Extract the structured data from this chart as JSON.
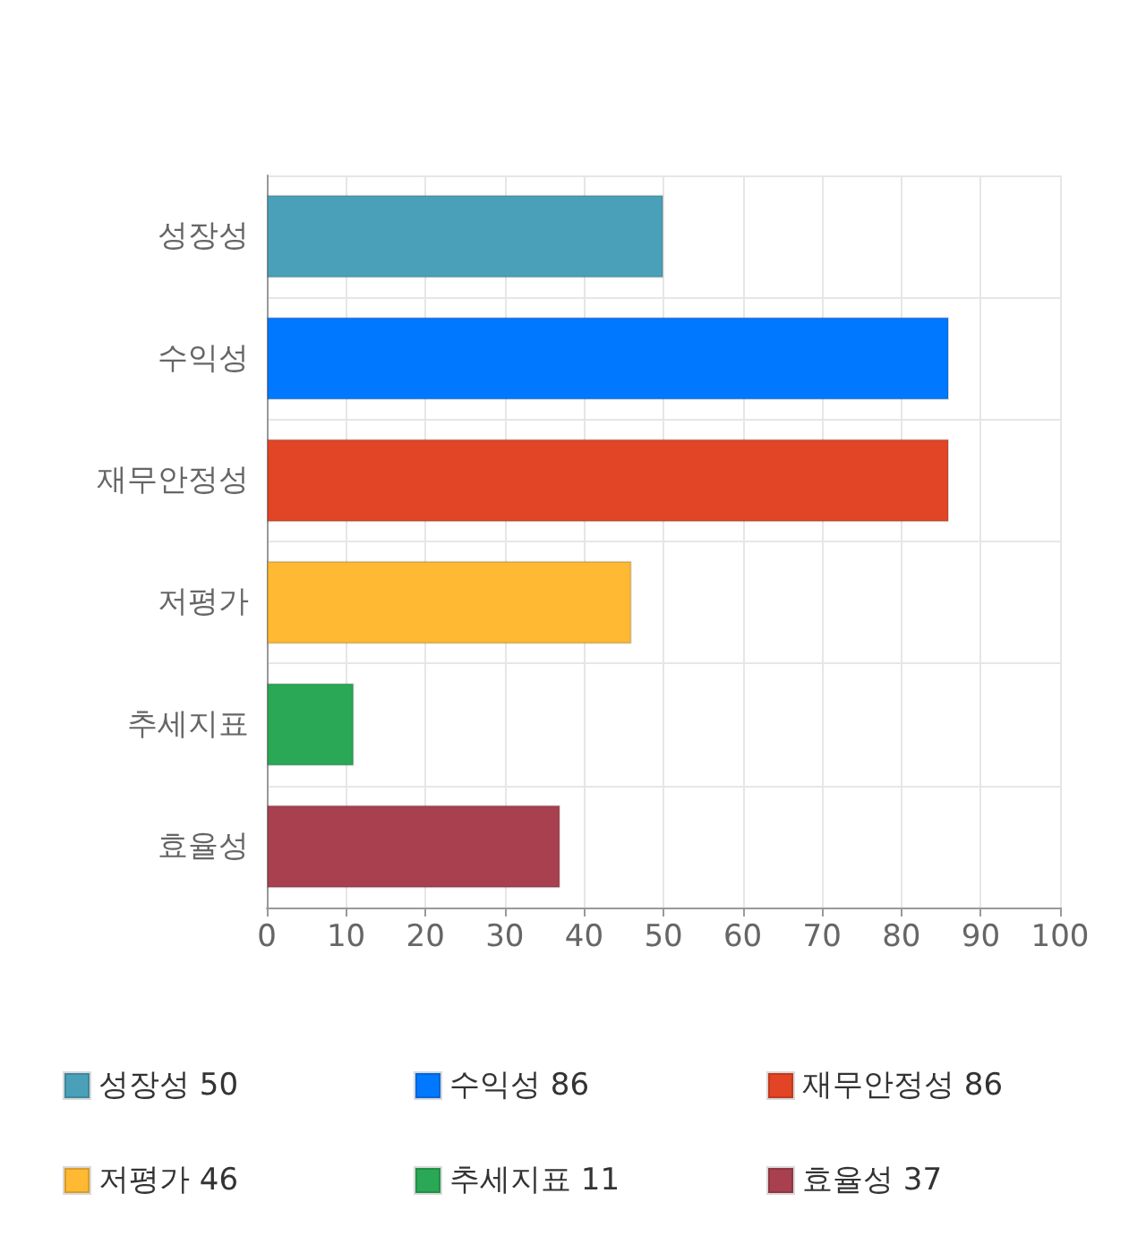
{
  "chart_data": {
    "type": "bar",
    "orientation": "horizontal",
    "stacked": true,
    "categories": [
      "성장성",
      "수익성",
      "재무안정성",
      "저평가",
      "추세지표",
      "효율성"
    ],
    "series": [
      {
        "name": "성장성 50",
        "color": "#4aa0b8",
        "values": [
          50,
          null,
          null,
          null,
          null,
          null
        ]
      },
      {
        "name": "수익성 86",
        "color": "#0078ff",
        "values": [
          null,
          86,
          null,
          null,
          null,
          null
        ]
      },
      {
        "name": "재무안정성 86",
        "color": "#e24525",
        "values": [
          null,
          null,
          86,
          null,
          null,
          null
        ]
      },
      {
        "name": "저평가 46",
        "color": "#ffb932",
        "values": [
          null,
          null,
          null,
          46,
          null,
          null
        ]
      },
      {
        "name": "추세지표 11",
        "color": "#2aa855",
        "values": [
          null,
          null,
          null,
          null,
          11,
          null
        ]
      },
      {
        "name": "효율성 37",
        "color": "#a8404f",
        "values": [
          null,
          null,
          null,
          null,
          null,
          37
        ]
      }
    ],
    "xlim": [
      0,
      100
    ],
    "xticks": [
      0,
      10,
      20,
      30,
      40,
      50,
      60,
      70,
      80,
      90,
      100
    ],
    "grid": true,
    "legend": "bottom"
  }
}
